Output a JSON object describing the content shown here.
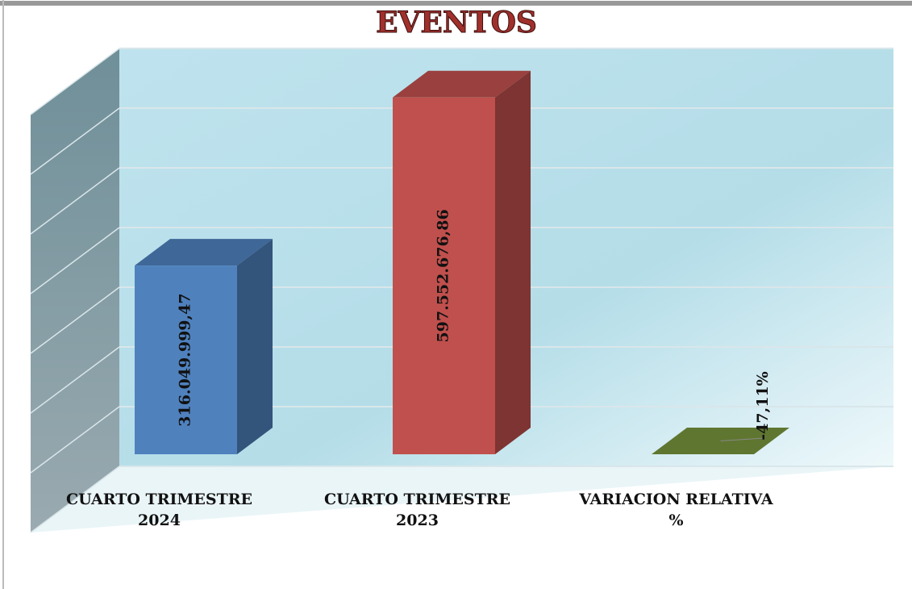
{
  "chart_data": {
    "type": "bar3d",
    "title": "EVENTOS",
    "categories": [
      "CUARTO TRIMESTRE 2024",
      "CUARTO TRIMESTRE 2023",
      "VARIACION RELATIVA %"
    ],
    "values": [
      316049999.47,
      597552676.86,
      -47.11
    ],
    "value_labels": [
      "316.049.999,47",
      "597.552.676,86",
      "-47,11%"
    ],
    "colors": [
      "#4f81bd",
      "#c0504d",
      "#77933c"
    ],
    "ylim": [
      0,
      700000000
    ],
    "yticks": [
      0,
      100000000,
      200000000,
      300000000,
      400000000,
      500000000,
      600000000,
      700000000
    ],
    "grid": true
  }
}
